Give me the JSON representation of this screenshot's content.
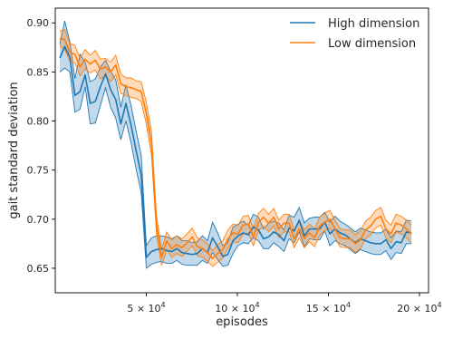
{
  "chart_data": {
    "type": "line",
    "title": "",
    "xlabel": "episodes",
    "ylabel": "gait standard deviation",
    "xlim": [
      0,
      20500
    ],
    "ylim": [
      0.625,
      0.915
    ],
    "x_ticks": [
      {
        "value": 5000,
        "label": "5 × 10",
        "exp": "4"
      },
      {
        "value": 10000,
        "label": "10 × 10",
        "exp": "4"
      },
      {
        "value": 15000,
        "label": "15 × 10",
        "exp": "4"
      },
      {
        "value": 20000,
        "label": "20 × 10",
        "exp": "4"
      }
    ],
    "y_ticks": [
      {
        "value": 0.65,
        "label": "0.65"
      },
      {
        "value": 0.7,
        "label": "0.70"
      },
      {
        "value": 0.75,
        "label": "0.75"
      },
      {
        "value": 0.8,
        "label": "0.80"
      },
      {
        "value": 0.85,
        "label": "0.85"
      },
      {
        "value": 0.9,
        "label": "0.90"
      }
    ],
    "grid": false,
    "legend_position": "top-right",
    "series": [
      {
        "name": "High dimension",
        "color": "#1f77b4",
        "x": [
          250,
          520,
          800,
          1080,
          1360,
          1640,
          1920,
          2200,
          2480,
          2760,
          3040,
          3320,
          3600,
          3880,
          4160,
          4440,
          4720,
          5000,
          5280,
          5560,
          5840,
          6120,
          6400,
          6680,
          6960,
          7240,
          7520,
          7800,
          8080,
          8360,
          8640,
          8920,
          9200,
          9480,
          9760,
          10040,
          10320,
          10600,
          10880,
          11160,
          11440,
          11720,
          12000,
          12280,
          12560,
          12840,
          13120,
          13400,
          13680,
          13960,
          14240,
          14520,
          14800,
          15080,
          15360,
          15640,
          15920,
          16200,
          16480,
          16760,
          17040,
          17320,
          17600,
          17880,
          18160,
          18440,
          18720,
          19000,
          19280,
          19560
        ],
        "mean": [
          0.864,
          0.876,
          0.865,
          0.826,
          0.83,
          0.847,
          0.818,
          0.82,
          0.835,
          0.848,
          0.832,
          0.822,
          0.797,
          0.818,
          0.796,
          0.77,
          0.745,
          0.661,
          0.667,
          0.669,
          0.67,
          0.668,
          0.667,
          0.67,
          0.666,
          0.665,
          0.664,
          0.665,
          0.67,
          0.666,
          0.681,
          0.672,
          0.662,
          0.664,
          0.678,
          0.683,
          0.686,
          0.684,
          0.692,
          0.689,
          0.68,
          0.682,
          0.687,
          0.684,
          0.678,
          0.691,
          0.688,
          0.699,
          0.683,
          0.69,
          0.69,
          0.69,
          0.697,
          0.685,
          0.69,
          0.686,
          0.684,
          0.68,
          0.676,
          0.68,
          0.678,
          0.676,
          0.675,
          0.675,
          0.679,
          0.67,
          0.677,
          0.676,
          0.687,
          0.686
        ],
        "lower": [
          0.85,
          0.854,
          0.85,
          0.809,
          0.812,
          0.835,
          0.797,
          0.798,
          0.816,
          0.834,
          0.814,
          0.803,
          0.781,
          0.8,
          0.778,
          0.751,
          0.727,
          0.65,
          0.654,
          0.656,
          0.657,
          0.655,
          0.655,
          0.658,
          0.654,
          0.653,
          0.653,
          0.653,
          0.658,
          0.655,
          0.666,
          0.659,
          0.652,
          0.653,
          0.665,
          0.673,
          0.676,
          0.675,
          0.681,
          0.678,
          0.67,
          0.67,
          0.676,
          0.672,
          0.667,
          0.68,
          0.676,
          0.687,
          0.672,
          0.68,
          0.679,
          0.679,
          0.688,
          0.673,
          0.678,
          0.675,
          0.673,
          0.669,
          0.665,
          0.669,
          0.667,
          0.665,
          0.664,
          0.664,
          0.668,
          0.659,
          0.666,
          0.665,
          0.675,
          0.675
        ],
        "upper": [
          0.878,
          0.902,
          0.881,
          0.843,
          0.868,
          0.86,
          0.84,
          0.843,
          0.855,
          0.862,
          0.851,
          0.842,
          0.814,
          0.837,
          0.816,
          0.79,
          0.765,
          0.673,
          0.681,
          0.683,
          0.683,
          0.682,
          0.68,
          0.683,
          0.678,
          0.678,
          0.676,
          0.677,
          0.683,
          0.678,
          0.697,
          0.686,
          0.673,
          0.676,
          0.692,
          0.695,
          0.698,
          0.694,
          0.705,
          0.702,
          0.69,
          0.696,
          0.698,
          0.696,
          0.689,
          0.704,
          0.702,
          0.712,
          0.696,
          0.701,
          0.702,
          0.702,
          0.707,
          0.697,
          0.703,
          0.698,
          0.695,
          0.691,
          0.687,
          0.691,
          0.689,
          0.687,
          0.686,
          0.686,
          0.69,
          0.681,
          0.688,
          0.687,
          0.699,
          0.698
        ]
      },
      {
        "name": "Low dimension",
        "color": "#ff7f0e",
        "x": [
          250,
          520,
          800,
          1080,
          1360,
          1640,
          1920,
          2200,
          2480,
          2760,
          3040,
          3320,
          3600,
          3880,
          4160,
          4440,
          4720,
          5000,
          5280,
          5560,
          5840,
          6120,
          6400,
          6680,
          6960,
          7240,
          7520,
          7800,
          8080,
          8360,
          8640,
          8920,
          9200,
          9480,
          9760,
          10040,
          10320,
          10600,
          10880,
          11160,
          11440,
          11720,
          12000,
          12280,
          12560,
          12840,
          13120,
          13400,
          13680,
          13960,
          14240,
          14520,
          14800,
          15080,
          15360,
          15640,
          15920,
          16200,
          16480,
          16760,
          17040,
          17320,
          17600,
          17880,
          18160,
          18440,
          18720,
          19000,
          19280,
          19560
        ],
        "mean": [
          0.884,
          0.883,
          0.87,
          0.868,
          0.855,
          0.863,
          0.858,
          0.862,
          0.853,
          0.855,
          0.85,
          0.857,
          0.838,
          0.835,
          0.834,
          0.832,
          0.83,
          0.808,
          0.778,
          0.694,
          0.661,
          0.678,
          0.67,
          0.674,
          0.671,
          0.676,
          0.682,
          0.672,
          0.67,
          0.666,
          0.66,
          0.665,
          0.669,
          0.68,
          0.686,
          0.685,
          0.694,
          0.695,
          0.682,
          0.697,
          0.702,
          0.696,
          0.702,
          0.69,
          0.696,
          0.696,
          0.68,
          0.69,
          0.68,
          0.686,
          0.681,
          0.693,
          0.697,
          0.7,
          0.69,
          0.681,
          0.68,
          0.68,
          0.675,
          0.679,
          0.689,
          0.693,
          0.7,
          0.703,
          0.69,
          0.685,
          0.696,
          0.694,
          0.69,
          0.685
        ],
        "lower": [
          0.876,
          0.873,
          0.861,
          0.859,
          0.846,
          0.853,
          0.849,
          0.852,
          0.843,
          0.846,
          0.84,
          0.847,
          0.828,
          0.826,
          0.824,
          0.823,
          0.82,
          0.797,
          0.766,
          0.684,
          0.653,
          0.669,
          0.661,
          0.665,
          0.662,
          0.667,
          0.673,
          0.663,
          0.661,
          0.657,
          0.652,
          0.656,
          0.66,
          0.671,
          0.677,
          0.676,
          0.685,
          0.686,
          0.673,
          0.688,
          0.693,
          0.687,
          0.693,
          0.681,
          0.687,
          0.687,
          0.671,
          0.681,
          0.671,
          0.677,
          0.672,
          0.684,
          0.688,
          0.691,
          0.681,
          0.672,
          0.671,
          0.671,
          0.666,
          0.67,
          0.68,
          0.684,
          0.691,
          0.694,
          0.681,
          0.676,
          0.687,
          0.685,
          0.681,
          0.676
        ],
        "upper": [
          0.892,
          0.893,
          0.879,
          0.877,
          0.864,
          0.873,
          0.867,
          0.872,
          0.863,
          0.864,
          0.86,
          0.867,
          0.848,
          0.844,
          0.844,
          0.841,
          0.84,
          0.819,
          0.79,
          0.704,
          0.669,
          0.687,
          0.679,
          0.683,
          0.68,
          0.685,
          0.691,
          0.681,
          0.679,
          0.675,
          0.668,
          0.674,
          0.678,
          0.689,
          0.695,
          0.694,
          0.703,
          0.704,
          0.691,
          0.706,
          0.711,
          0.705,
          0.711,
          0.699,
          0.705,
          0.705,
          0.689,
          0.699,
          0.689,
          0.695,
          0.69,
          0.702,
          0.706,
          0.709,
          0.699,
          0.69,
          0.689,
          0.689,
          0.684,
          0.688,
          0.698,
          0.702,
          0.709,
          0.712,
          0.699,
          0.694,
          0.705,
          0.703,
          0.699,
          0.694
        ]
      }
    ]
  }
}
